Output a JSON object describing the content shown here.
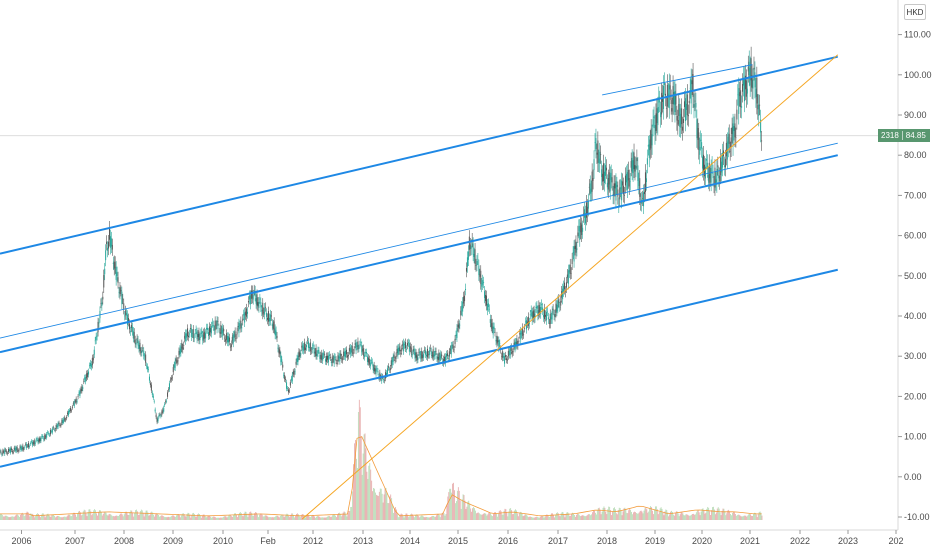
{
  "header": {
    "currency": "HKD"
  },
  "last_price": {
    "symbol": "2318",
    "value": "84.85"
  },
  "colors": {
    "up": "#26a69a",
    "down": "#555555",
    "channel": "#1e88e5",
    "trend": "#f5a623",
    "volume_up": "#b5d9b2",
    "volume_down": "#e6a8a8",
    "price_tag": "#58976f"
  },
  "chart_data": {
    "type": "line",
    "x_ticks": [
      "2006",
      "2007",
      "2008",
      "2009",
      "2010",
      "Feb",
      "2012",
      "2013",
      "2014",
      "2015",
      "2016",
      "2017",
      "2018",
      "2019",
      "2020",
      "2021",
      "2022",
      "2023",
      "202"
    ],
    "y_ticks": [
      "110.00",
      "100.00",
      "90.00",
      "80.00",
      "70.00",
      "60.00",
      "50.00",
      "40.00",
      "30.00",
      "20.00",
      "10.00",
      "0.00",
      "-10.00"
    ],
    "ylim": [
      -12,
      116
    ],
    "xlim": [
      2005.55,
      2023.15
    ],
    "series": [
      {
        "values_x": [
          2005.55,
          2006.0,
          2006.5,
          2006.9,
          2007.2,
          2007.5,
          2007.7,
          2007.78,
          2007.85,
          2008.0,
          2008.2,
          2008.4,
          2008.6,
          2008.75,
          2008.85,
          2009.0,
          2009.2,
          2009.5,
          2009.8,
          2010.1,
          2010.4,
          2010.7,
          2010.85,
          2011.0,
          2011.3,
          2011.6,
          2011.85,
          2012.0,
          2012.3,
          2012.6,
          2012.9,
          2013.1,
          2013.3,
          2013.6,
          2013.9,
          2014.1,
          2014.3,
          2014.6,
          2014.9,
          2015.1,
          2015.3,
          2015.42,
          2015.6,
          2015.75,
          2015.9,
          2016.0,
          2016.15,
          2016.4,
          2016.7,
          2016.9,
          2017.1,
          2017.3,
          2017.5,
          2017.7,
          2017.85,
          2018.0,
          2018.07,
          2018.2,
          2018.4,
          2018.55,
          2018.75,
          2018.9,
          2019.05,
          2019.2,
          2019.35,
          2019.5,
          2019.7,
          2019.85,
          2020.05,
          2020.1,
          2020.2,
          2020.35,
          2020.6,
          2020.8,
          2020.9,
          2021.0,
          2021.05,
          2021.2,
          2021.33,
          2021.45,
          2021.55
        ],
        "values_y": [
          6,
          7,
          10,
          14,
          20,
          29,
          44,
          56,
          60,
          50,
          40,
          34,
          30,
          21,
          14,
          17,
          27,
          36,
          35,
          38,
          33,
          40,
          46,
          43,
          38,
          21,
          31,
          33,
          30,
          29,
          31,
          33,
          29,
          24,
          31,
          33,
          30,
          31,
          29,
          33,
          44,
          59,
          52,
          45,
          37,
          34,
          29,
          33,
          40,
          42,
          39,
          43,
          50,
          60,
          65,
          74,
          83,
          76,
          73,
          70,
          74,
          79,
          67,
          83,
          90,
          95,
          94,
          88,
          94,
          99,
          86,
          77,
          74,
          80,
          84,
          86,
          93,
          97,
          101,
          96,
          85
        ]
      }
    ],
    "volume": {
      "x": [
        2006.2,
        2007.0,
        2007.8,
        2008.9,
        2009.9,
        2011.0,
        2011.9,
        2012.9,
        2013.07,
        2013.9,
        2014.9,
        2015.0,
        2015.3,
        2015.9,
        2016.3,
        2016.9,
        2017.6,
        2018.1,
        2018.5,
        2019.0,
        2019.6,
        2020.2,
        2020.7,
        2021.0,
        2021.4
      ],
      "values": [
        2,
        3,
        4,
        3,
        2,
        3,
        2,
        3,
        45,
        2,
        3,
        13,
        9,
        3,
        4,
        2,
        3,
        5,
        4,
        7,
        3,
        5,
        4,
        4,
        3
      ]
    },
    "trendlines": [
      {
        "x": [
          2005.55,
          2023.15
        ],
        "y": [
          55.5,
          104.5
        ]
      },
      {
        "x": [
          2005.55,
          2023.15
        ],
        "y": [
          31.0,
          80.0
        ]
      },
      {
        "x": [
          2005.55,
          2023.15
        ],
        "y": [
          2.5,
          51.5
        ]
      },
      {
        "x": [
          2005.55,
          2023.15
        ],
        "y": [
          34.5,
          83.0
        ]
      },
      {
        "x": [
          2018.2,
          2021.35
        ],
        "y": [
          95.0,
          102.5
        ]
      },
      {
        "x": [
          2011.9,
          2023.15
        ],
        "y": [
          -10.5,
          105.0
        ]
      }
    ],
    "grid": false
  }
}
